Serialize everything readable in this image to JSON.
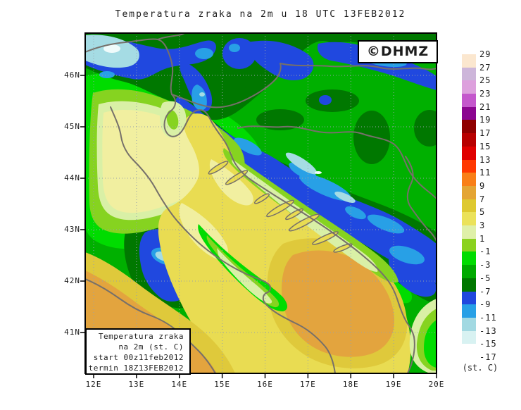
{
  "title": "Temperatura zraka na 2m u 18 UTC 13FEB2012",
  "watermark": {
    "text": "©DHMZ",
    "color": "#1A1ACD"
  },
  "legend_box": {
    "lines": [
      "Temperatura zraka",
      "na 2m (st. C)",
      "start 00z11feb2012",
      "termin 18Z13FEB2012"
    ]
  },
  "axes": {
    "x_ticks": [
      "12E",
      "13E",
      "14E",
      "15E",
      "16E",
      "17E",
      "18E",
      "19E",
      "20E"
    ],
    "y_ticks": [
      "46N",
      "45N",
      "44N",
      "43N",
      "42N",
      "41N"
    ]
  },
  "colorbar": {
    "unit_label": "(st. C)",
    "tick_labels": [
      "29",
      "27",
      "25",
      "23",
      "21",
      "19",
      "17",
      "15",
      "13",
      "11",
      "9",
      "7",
      "5",
      "3",
      "1",
      "-1",
      "-3",
      "-5",
      "-7",
      "-9",
      "-11",
      "-13",
      "-15",
      "-17"
    ],
    "segment_colors": [
      "#FBE7CF",
      "#CDB6DA",
      "#DDA0DD",
      "#C457CC",
      "#8B0590",
      "#8F0000",
      "#B80000",
      "#E00000",
      "#FF3800",
      "#F97F17",
      "#E4A534",
      "#DEC930",
      "#EBE25A",
      "#DFF0A8",
      "#8BD21F",
      "#00DC00",
      "#00AA00",
      "#007800",
      "#2148DE",
      "#28A0E6",
      "#A2D9E2",
      "#D8F2F2",
      "#FFFFFF"
    ]
  },
  "palette": {
    "greenMid": "#00B000",
    "greenBright": "#00DC00",
    "greenDark": "#007800",
    "greenYl": "#86D320",
    "greenPale": "#D9F0A6",
    "yellowPale": "#F1EFA0",
    "yellow": "#E9DC52",
    "mustard": "#DFC93B",
    "orange": "#E3A43E",
    "blueRoyal": "#2048DF",
    "blueDodger": "#28A0E6",
    "cyanLight": "#A5DCE4",
    "cyanWhite": "#EFFBFB",
    "border": "#76706A",
    "grid": "#98A2AA",
    "frame": "#000000"
  },
  "chart_data": {
    "type": "heatmap",
    "title": "Temperatura zraka na 2m u 18 UTC 13FEB2012",
    "unit": "st. C",
    "x_range": [
      "12E",
      "20E"
    ],
    "y_range": [
      "41N",
      "46N"
    ],
    "scale_levels": [
      29,
      27,
      25,
      23,
      21,
      19,
      17,
      15,
      13,
      11,
      9,
      7,
      5,
      3,
      1,
      -1,
      -3,
      -5,
      -7,
      -9,
      -11,
      -13,
      -15,
      -17
    ],
    "legend_position": "right"
  }
}
